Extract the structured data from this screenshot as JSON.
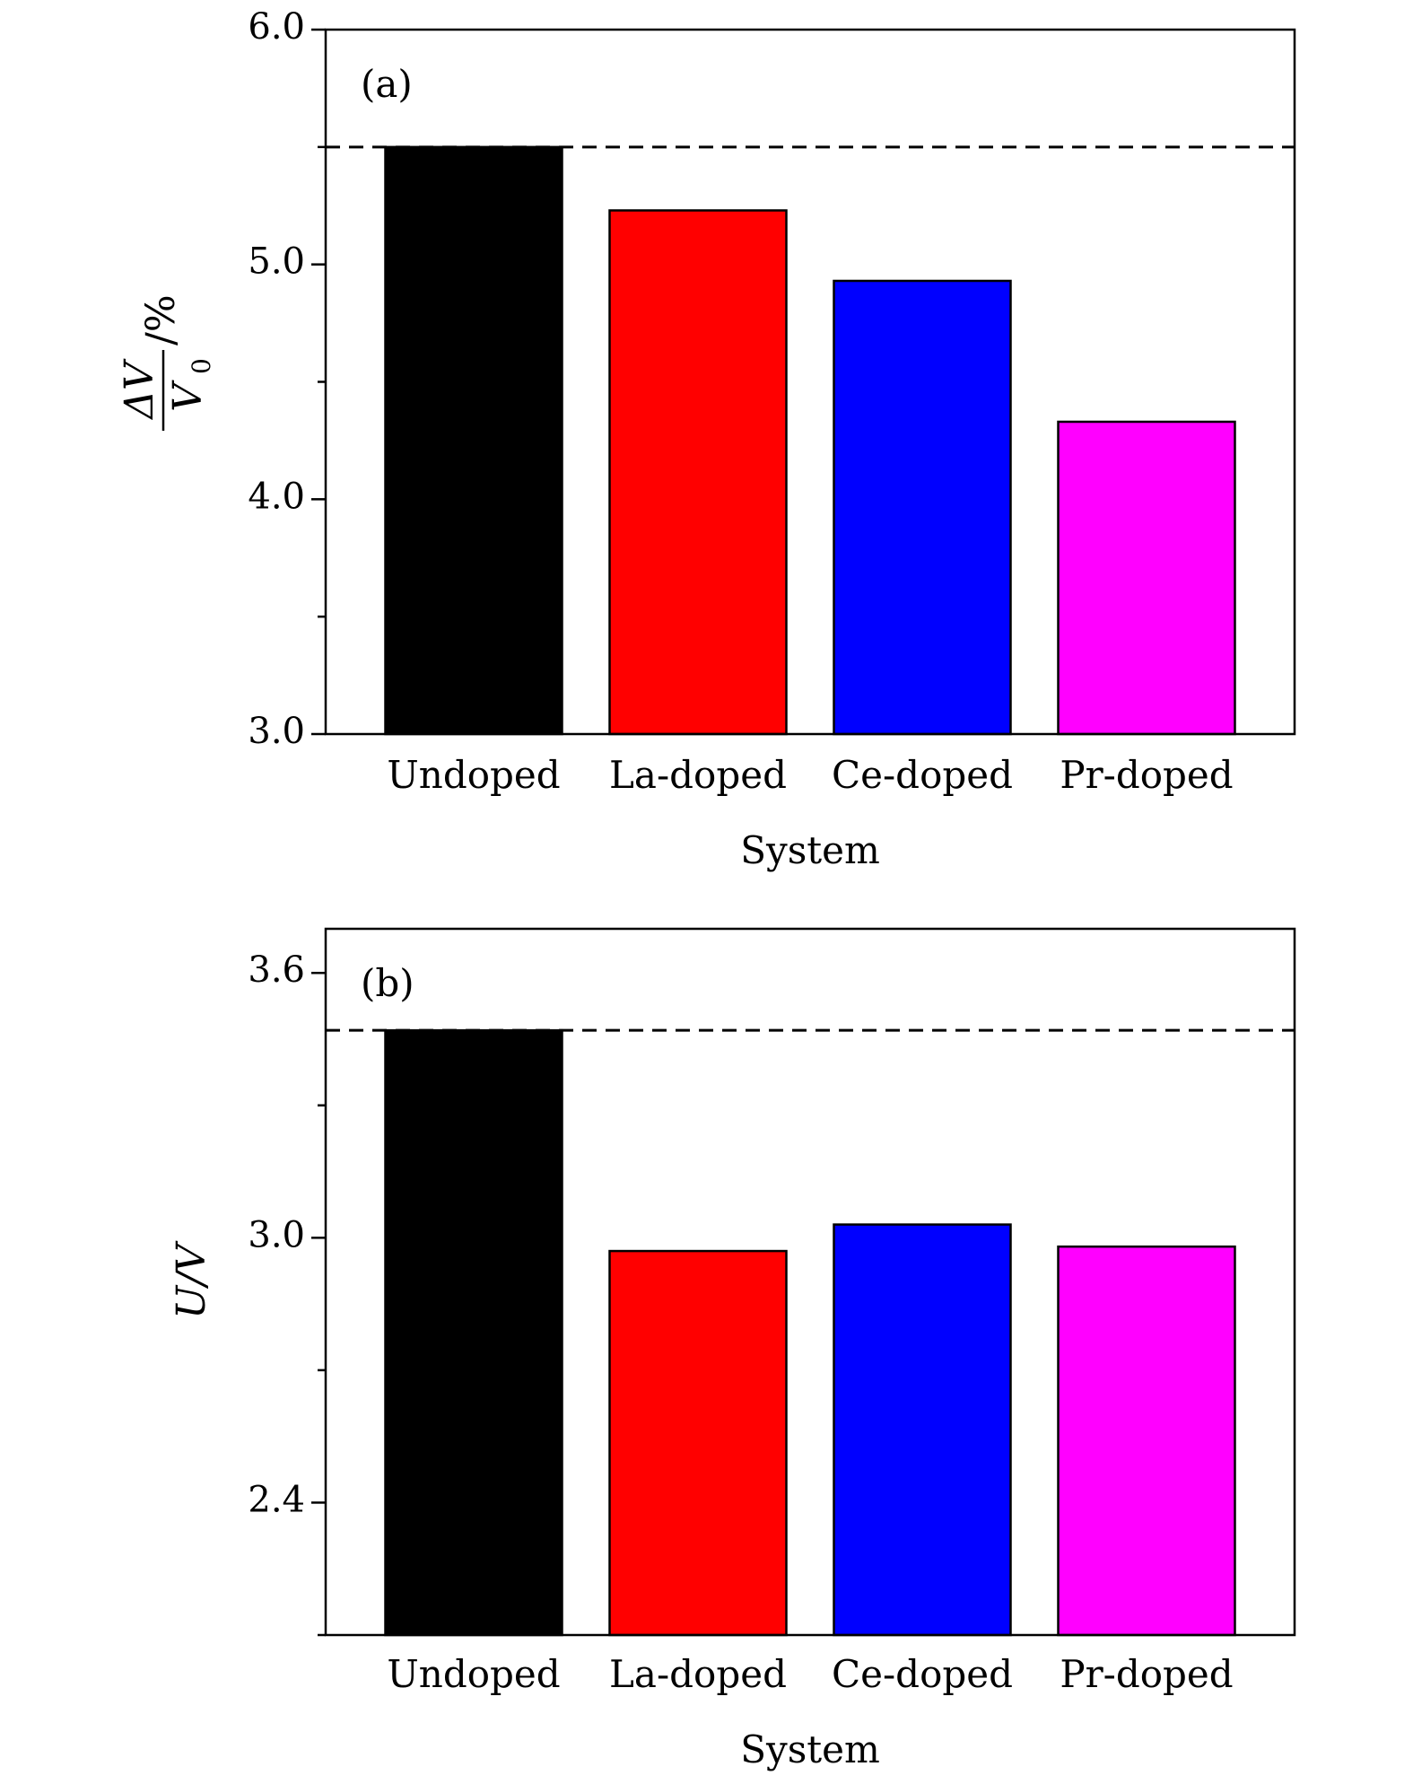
{
  "chart_data": [
    {
      "type": "bar",
      "panel_label": "(a)",
      "categories": [
        "Undoped",
        "La-doped",
        "Ce-doped",
        "Pr-doped"
      ],
      "values": [
        5.5,
        5.23,
        4.93,
        4.33
      ],
      "colors": [
        "#000000",
        "#ff0000",
        "#0000ff",
        "#ff00ff"
      ],
      "xlabel": "System",
      "ylabel": {
        "numerator": "ΔV",
        "denominator": "V",
        "denominator_subscript": "0",
        "suffix": "/%"
      },
      "ylim": [
        3.0,
        6.0
      ],
      "yticks": [
        "3.0",
        "4.0",
        "5.0",
        "6.0"
      ],
      "y_minor_step": 0.5,
      "reference_line": 5.5,
      "grid": false,
      "legend": "none"
    },
    {
      "type": "bar",
      "panel_label": "(b)",
      "categories": [
        "Undoped",
        "La-doped",
        "Ce-doped",
        "Pr-doped"
      ],
      "values": [
        3.47,
        2.97,
        3.03,
        2.98
      ],
      "colors": [
        "#000000",
        "#ff0000",
        "#0000ff",
        "#ff00ff"
      ],
      "xlabel": "System",
      "ylabel": {
        "text": "U/V"
      },
      "ylim": [
        2.1,
        3.7
      ],
      "yticks": [
        "2.4",
        "3.0",
        "3.6"
      ],
      "y_minor_step": 0.3,
      "reference_line": 3.47,
      "grid": false,
      "legend": "none"
    }
  ]
}
